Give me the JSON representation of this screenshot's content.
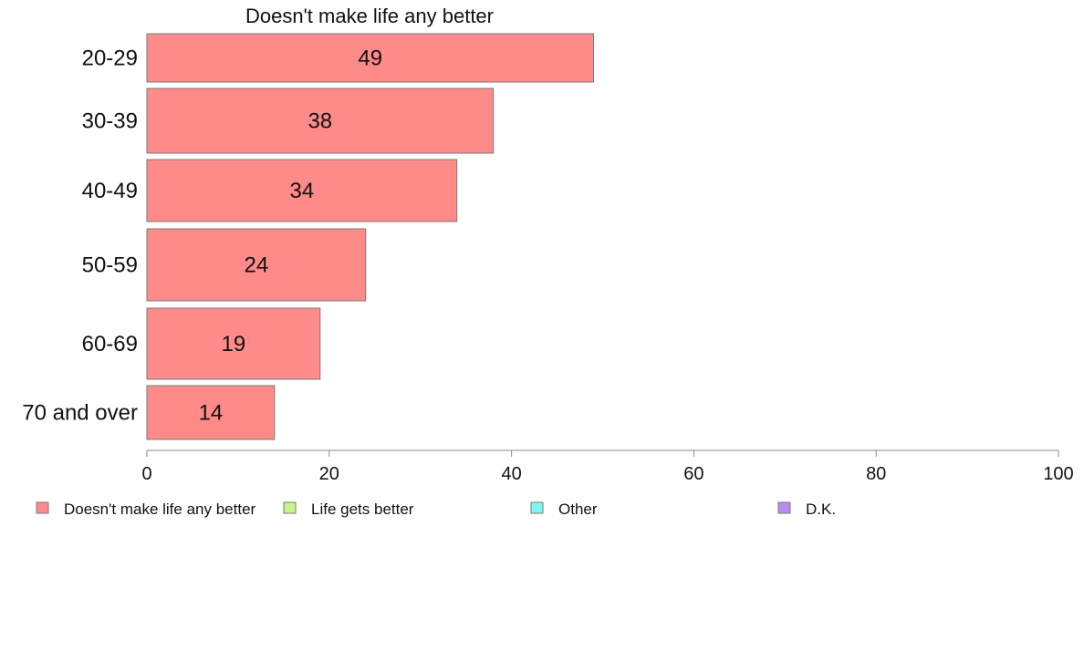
{
  "chart_data": {
    "type": "bar",
    "orientation": "horizontal",
    "title": "Doesn't make life any better",
    "categories": [
      "20-29",
      "30-39",
      "40-49",
      "50-59",
      "60-69",
      "70 and over"
    ],
    "series": [
      {
        "name": "Doesn't make life any better",
        "values": [
          49,
          38,
          34,
          24,
          19,
          14
        ],
        "color": "#ff8a8a"
      }
    ],
    "xlim": [
      0,
      100
    ],
    "xticks": [
      0,
      20,
      40,
      60,
      80,
      100
    ],
    "xlabel": "",
    "ylabel": "",
    "grid": false,
    "legend": {
      "placement": "bottom",
      "items": [
        {
          "label": "Doesn't make life any better",
          "color": "#ff8a8a"
        },
        {
          "label": "Life gets better",
          "color": "#c8f58a"
        },
        {
          "label": "Other",
          "color": "#7ef5f0"
        },
        {
          "label": "D.K.",
          "color": "#b98af0"
        }
      ]
    }
  }
}
